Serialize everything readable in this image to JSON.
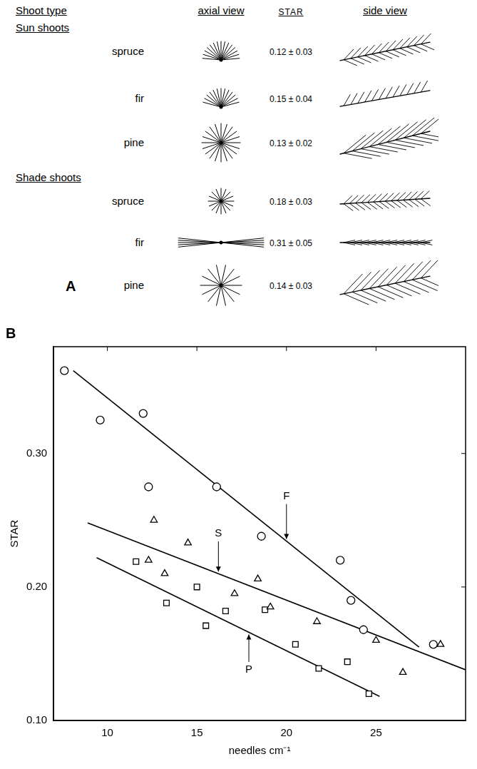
{
  "panel_a": {
    "letter": "A",
    "headers": [
      "Shoot type",
      "axial view",
      "STAR",
      "side view"
    ],
    "groups": [
      {
        "title": "Sun shoots",
        "rows": [
          {
            "name": "spruce",
            "star": "0.12 ± 0.03"
          },
          {
            "name": "fir",
            "star": "0.15 ± 0.04"
          },
          {
            "name": "pine",
            "star": "0.13 ± 0.02"
          }
        ]
      },
      {
        "title": "Shade shoots",
        "rows": [
          {
            "name": "spruce",
            "star": "0.18 ± 0.03"
          },
          {
            "name": "fir",
            "star": "0.31 ± 0.05"
          },
          {
            "name": "pine",
            "star": "0.14 ± 0.03"
          }
        ]
      }
    ]
  },
  "chart_data": {
    "type": "scatter",
    "panel_label": "B",
    "x_label": "needles cm⁻¹",
    "y_label": "STAR",
    "xlim": [
      7,
      30
    ],
    "ylim": [
      0.1,
      0.38
    ],
    "xticks": [
      10,
      15,
      20,
      25
    ],
    "yticks": [
      {
        "value": 0.1,
        "label": "0.10"
      },
      {
        "value": 0.2,
        "label": "0.20"
      },
      {
        "value": 0.3,
        "label": "0.30"
      }
    ],
    "grid": false,
    "series": [
      {
        "name": "F",
        "marker": "circle",
        "color": "#000000",
        "x": [
          7.6,
          9.6,
          12.0,
          12.3,
          16.1,
          18.6,
          23.0,
          23.6,
          24.3,
          28.2
        ],
        "values": [
          0.362,
          0.325,
          0.33,
          0.275,
          0.275,
          0.238,
          0.22,
          0.19,
          0.168,
          0.157
        ],
        "fit": {
          "x": [
            8.1,
            27.4
          ],
          "values": [
            0.362,
            0.155
          ]
        },
        "label": {
          "x": 20,
          "y": 0.268
        }
      },
      {
        "name": "S",
        "marker": "triangle",
        "color": "#000000",
        "x": [
          12.6,
          12.3,
          13.2,
          14.5,
          17.1,
          18.4,
          19.1,
          21.7,
          25.0,
          26.5,
          28.6
        ],
        "values": [
          0.25,
          0.22,
          0.21,
          0.233,
          0.195,
          0.206,
          0.185,
          0.174,
          0.16,
          0.136,
          0.157
        ],
        "fit": {
          "x": [
            8.9,
            30.0
          ],
          "values": [
            0.248,
            0.138
          ]
        },
        "label": {
          "x": 16.2,
          "y": 0.24
        }
      },
      {
        "name": "P",
        "marker": "square",
        "color": "#000000",
        "x": [
          11.6,
          13.3,
          15.0,
          15.5,
          16.6,
          18.8,
          20.5,
          21.8,
          23.4,
          24.6
        ],
        "values": [
          0.219,
          0.188,
          0.2,
          0.171,
          0.182,
          0.183,
          0.157,
          0.139,
          0.144,
          0.12
        ],
        "fit": {
          "x": [
            9.4,
            25.2
          ],
          "values": [
            0.222,
            0.118
          ]
        },
        "label": {
          "x": 17.9,
          "y": 0.138
        }
      }
    ]
  }
}
